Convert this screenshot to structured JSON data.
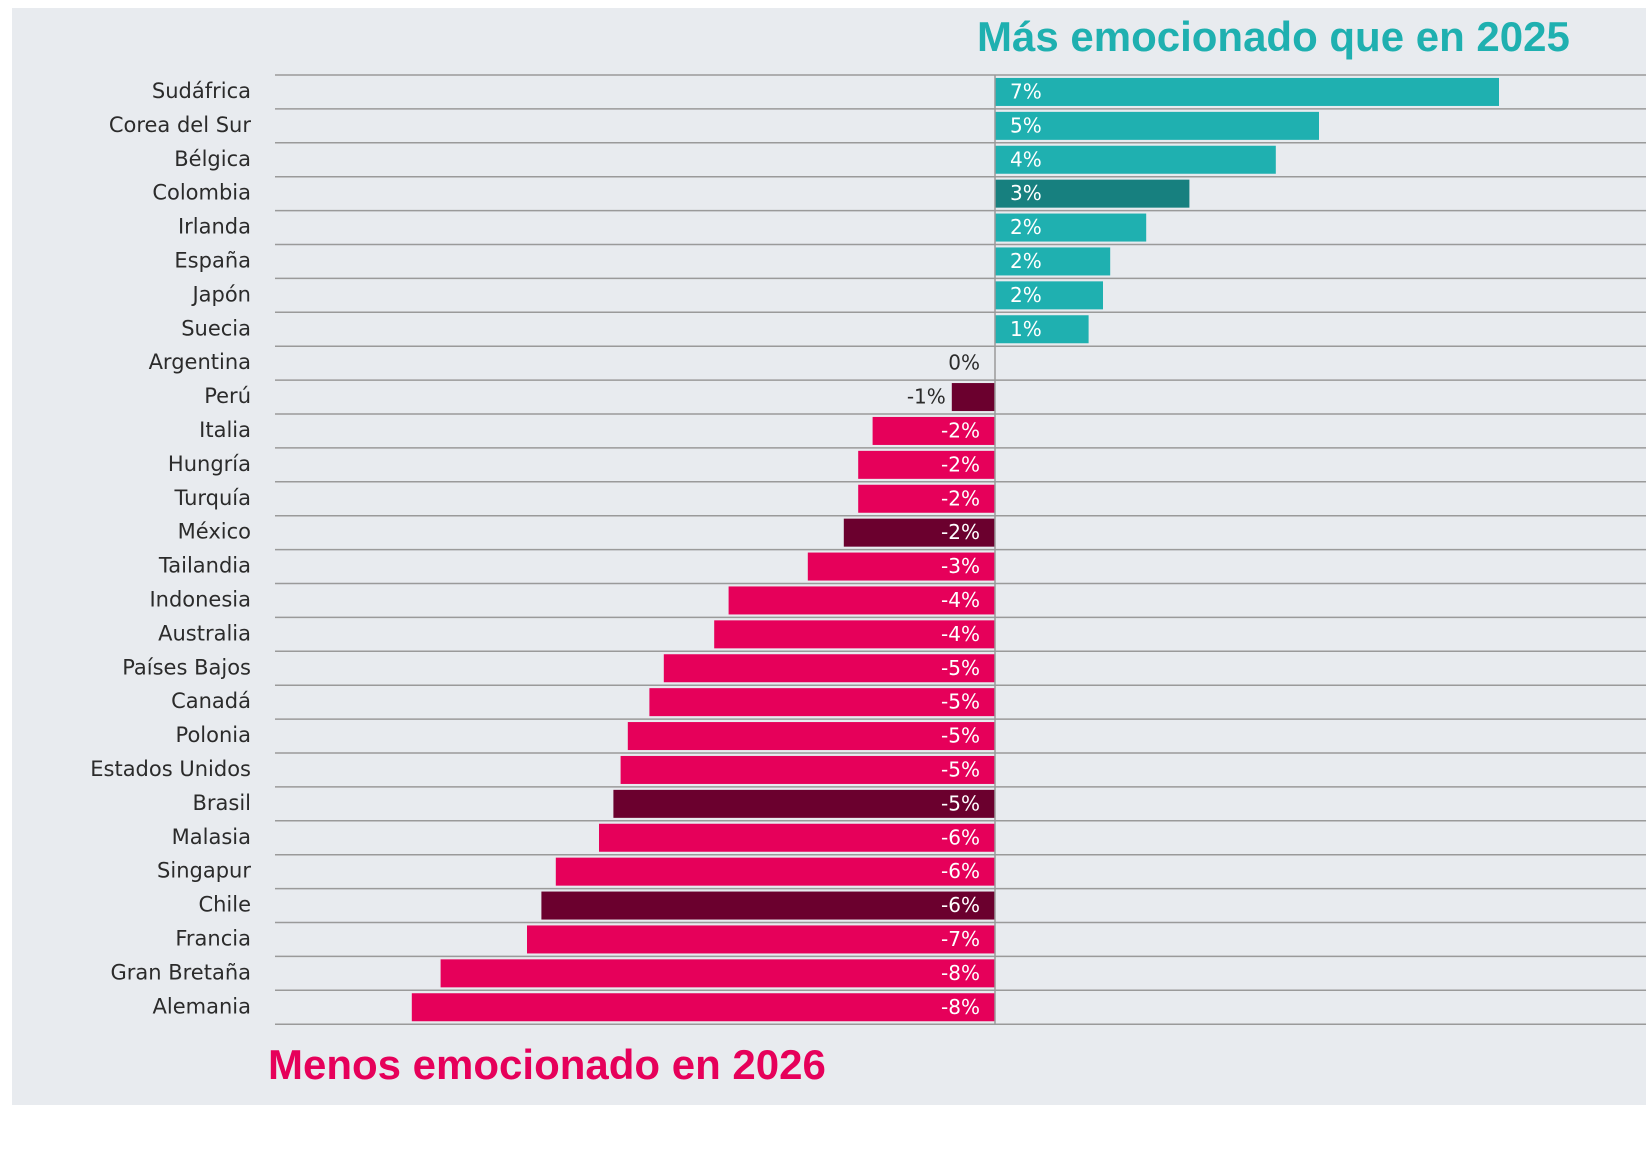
{
  "chart_data": {
    "type": "bar",
    "orientation": "horizontal",
    "title": "Más emocionado que en 2025",
    "subtitle": "Menos emocionado en 2026",
    "categories": [
      "Sudáfrica",
      "Corea del Sur",
      "Bélgica",
      "Colombia",
      "Irlanda",
      "España",
      "Japón",
      "Suecia",
      "Argentina",
      "Perú",
      "Italia",
      "Hungría",
      "Turquía",
      "México",
      "Tailandia",
      "Indonesia",
      "Australia",
      "Países Bajos",
      "Canadá",
      "Polonia",
      "Estados Unidos",
      "Brasil",
      "Malasia",
      "Singapur",
      "Chile",
      "Francia",
      "Gran Bretaña",
      "Alemania"
    ],
    "values": [
      7.0,
      4.5,
      3.9,
      2.7,
      2.1,
      1.6,
      1.5,
      1.3,
      0,
      -0.6,
      -1.7,
      -1.9,
      -1.9,
      -2.1,
      -2.6,
      -3.7,
      -3.9,
      -4.6,
      -4.8,
      -5.1,
      -5.2,
      -5.3,
      -5.5,
      -6.1,
      -6.3,
      -6.5,
      -7.7,
      -8.1
    ],
    "value_labels": [
      "7%",
      "5%",
      "4%",
      "3%",
      "2%",
      "2%",
      "2%",
      "1%",
      "0%",
      "-1%",
      "-2%",
      "-2%",
      "-2%",
      "-2%",
      "-3%",
      "-4%",
      "-4%",
      "-5%",
      "-5%",
      "-5%",
      "-5%",
      "-5%",
      "-6%",
      "-6%",
      "-6%",
      "-7%",
      "-8%",
      "-8%"
    ],
    "colors": [
      "#1fb0b0",
      "#1fb0b0",
      "#1fb0b0",
      "#17807f",
      "#1fb0b0",
      "#1fb0b0",
      "#1fb0b0",
      "#1fb0b0",
      "#1fb0b0",
      "#6b002e",
      "#e6005a",
      "#e6005a",
      "#e6005a",
      "#6b002e",
      "#e6005a",
      "#e6005a",
      "#e6005a",
      "#e6005a",
      "#e6005a",
      "#e6005a",
      "#e6005a",
      "#6b002e",
      "#e6005a",
      "#e6005a",
      "#6b002e",
      "#e6005a",
      "#e6005a",
      "#e6005a"
    ],
    "title_color": "#1fb0b0",
    "subtitle_color": "#e6005a",
    "grid": true
  }
}
